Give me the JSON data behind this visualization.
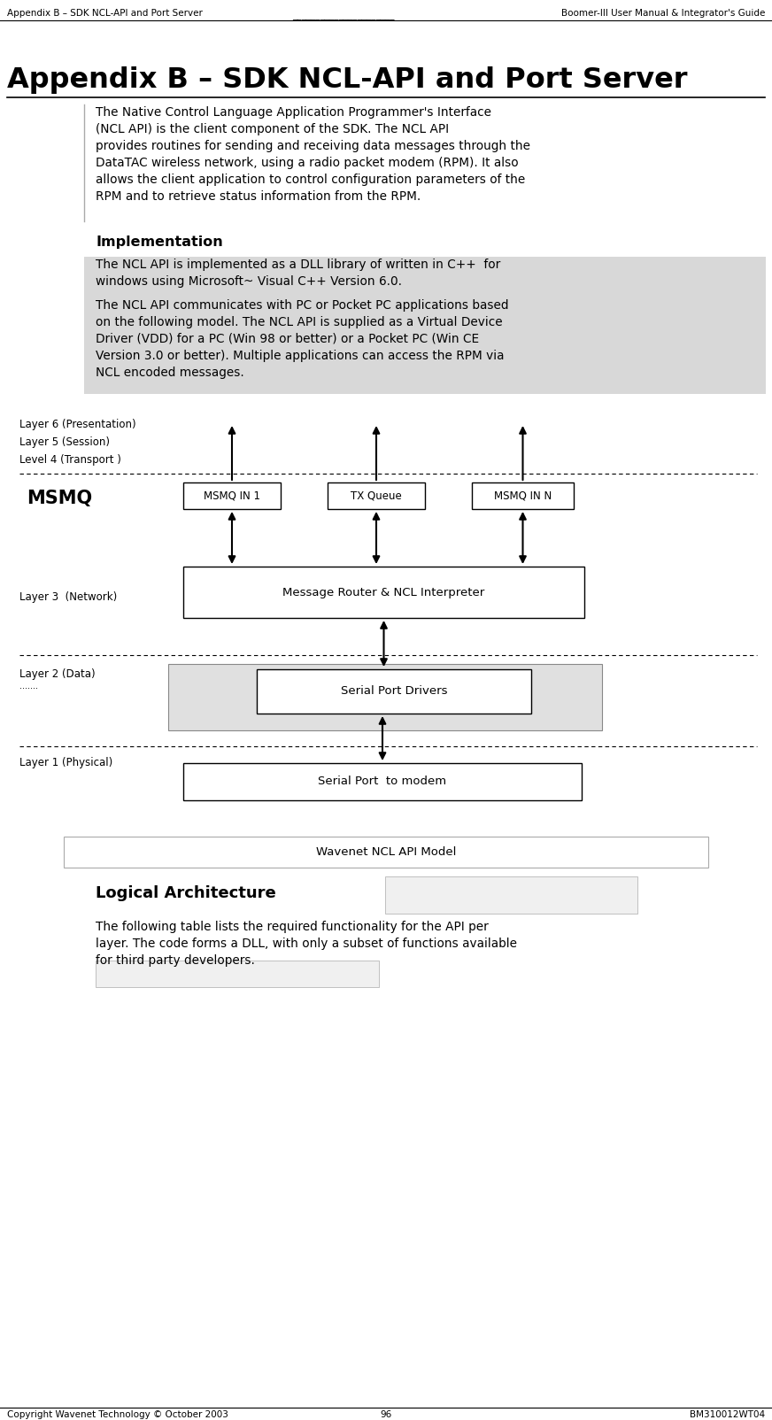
{
  "header_left": "Appendix B – SDK NCL-API and Port Server",
  "header_right": "Boomer-III User Manual & Integrator's Guide",
  "title": "Appendix B – SDK NCL-API and Port Server",
  "intro_text": "The Native Control Language Application Programmer's Interface\n(NCL API) is the client component of the SDK. The NCL API\nprovides routines for sending and receiving data messages through the\nDataTAC wireless network, using a radio packet modem (RPM). It also\nallows the client application to control configuration parameters of the\nRPM and to retrieve status information from the RPM.",
  "impl_heading": "Implementation",
  "impl_text1": "The NCL API is implemented as a DLL library of written in C++  for\nwindows using Microsoft~ Visual C++ Version 6.0.",
  "impl_text2": "The NCL API communicates with PC or Pocket PC applications based\non the following model. The NCL API is supplied as a Virtual Device\nDriver (VDD) for a PC (Win 98 or better) or a Pocket PC (Win CE\nVersion 3.0 or better). Multiple applications can access the RPM via\nNCL encoded messages.",
  "layer6_label": "Layer 6 (Presentation)",
  "layer5_label": "Layer 5 (Session)",
  "layer4_label": "Level 4 (Transport )",
  "msmq_label": "MSMQ",
  "msmq_in1_label": "MSMQ IN 1",
  "tx_queue_label": "TX Queue",
  "msmq_inn_label": "MSMQ IN N",
  "msg_router_label": "Message Router & NCL Interpreter",
  "layer3_label": "Layer 3  (Network)",
  "serial_drivers_label": "Serial Port Drivers",
  "layer2_label": "Layer 2 (Data)",
  "layer2_dots": ".......",
  "serial_port_label": "Serial Port  to modem",
  "layer1_label": "Layer 1 (Physical)",
  "diagram_caption": "Wavenet NCL API Model",
  "logical_arch_heading": "Logical Architecture",
  "logical_arch_text": "The following table lists the required functionality for the API per\nlayer. The code forms a DLL, with only a subset of functions available\nfor third party developers.",
  "footer_left": "Copyright Wavenet Technology © October 2003",
  "footer_center": "96",
  "footer_right": "BM310012WT04",
  "bg_color": "#ffffff",
  "text_color": "#000000"
}
